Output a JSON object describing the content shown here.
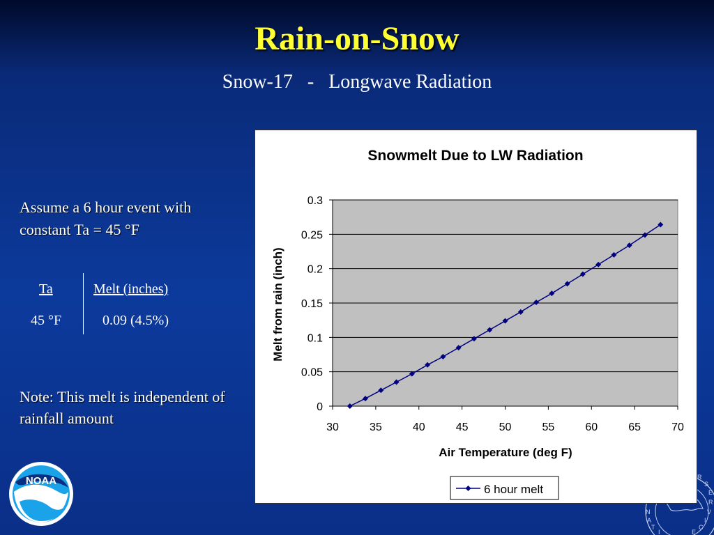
{
  "slide": {
    "title": "Rain-on-Snow",
    "subtitle": "Snow-17   -   Longwave Radiation",
    "assume_text": "Assume a 6 hour event with constant Ta = 45 °F",
    "table": {
      "headers": [
        "Ta",
        "Melt (inches)"
      ],
      "row": [
        "45 °F",
        "0.09 (4.5%)"
      ]
    },
    "note": "Note: This melt is independent of rainfall amount",
    "logo_text": "NOAA"
  },
  "colors": {
    "title": "#ffff33",
    "series": "#000080",
    "plot_bg": "#c0c0c0"
  },
  "chart_data": {
    "type": "line",
    "title": "Snowmelt Due to LW Radiation",
    "xlabel": "Air Temperature (deg F)",
    "ylabel": "Melt from rain (inch)",
    "xlim": [
      30,
      70
    ],
    "ylim": [
      0,
      0.3
    ],
    "x_ticks": [
      "30",
      "35",
      "40",
      "45",
      "50",
      "55",
      "60",
      "65",
      "70"
    ],
    "y_ticks": [
      "0",
      "0.05",
      "0.1",
      "0.15",
      "0.2",
      "0.25",
      "0.3"
    ],
    "grid": "horizontal",
    "legend": "bottom",
    "series": [
      {
        "name": "6 hour melt",
        "x": [
          32,
          33.8,
          35.6,
          37.4,
          39.2,
          41,
          42.8,
          44.6,
          46.4,
          48.2,
          50,
          51.8,
          53.6,
          55.4,
          57.2,
          59,
          60.8,
          62.6,
          64.4,
          66.2,
          68
        ],
        "y": [
          0,
          0.011,
          0.023,
          0.035,
          0.047,
          0.06,
          0.072,
          0.085,
          0.098,
          0.111,
          0.124,
          0.137,
          0.151,
          0.164,
          0.178,
          0.192,
          0.206,
          0.22,
          0.234,
          0.249,
          0.264
        ]
      }
    ]
  }
}
